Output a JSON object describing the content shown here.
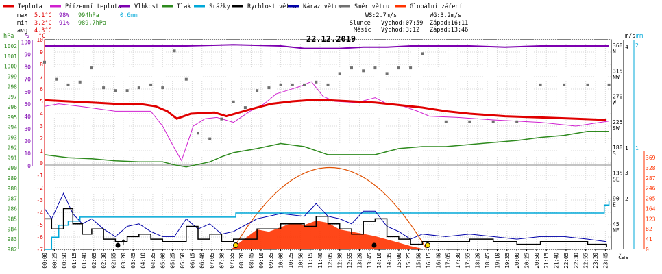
{
  "title": "22.12.2019",
  "legend": [
    {
      "label": "Teplota",
      "color": "#e00000"
    },
    {
      "label": "Přízemní teplota",
      "color": "#d020d0"
    },
    {
      "label": "Vlhkost",
      "color": "#7d00b0"
    },
    {
      "label": "Tlak",
      "color": "#2e8a1e"
    },
    {
      "label": "Srážky",
      "color": "#00a8d8"
    },
    {
      "label": "Rychlost větru",
      "color": "#000000"
    },
    {
      "label": "Náraz větru",
      "color": "#0000a8"
    },
    {
      "label": "Směr větru",
      "color": "#707070"
    },
    {
      "label": "Globální záření",
      "color": "#ff3300"
    }
  ],
  "stats": {
    "max_label": "max",
    "min_label": "min",
    "avg_label": "avg",
    "max_temp": "5.1°C",
    "max_hum": "98%",
    "max_press": "994hPa",
    "max_rain": "0.6mm",
    "min_temp": "3.2°C",
    "min_hum": "91%",
    "min_press": "989.7hPa",
    "avg_temp": "4.3°C"
  },
  "wind_info": {
    "ws": "WS:2.7m/s",
    "wg": "WG:3.2m/s"
  },
  "sun_info": {
    "label": "Slunce",
    "rise": "Východ:07:59",
    "set": "Západ:16:11"
  },
  "moon_info": {
    "label": "Měsíc",
    "rise": "Východ:3:12",
    "set": "Západ:13:46"
  },
  "axes": {
    "hpa_label": "hPa",
    "pct_label": "%",
    "c_label": "°C",
    "ms_label": "m/s",
    "mm_label": "mm",
    "wm2_label": "W/m²",
    "time_label": "čas",
    "hpa_ticks": [
      "1002",
      "1001",
      "1000",
      "999",
      "998",
      "997",
      "996",
      "995",
      "994",
      "993",
      "992",
      "991",
      "990",
      "989",
      "988",
      "987",
      "986",
      "985",
      "984",
      "983",
      "982"
    ],
    "pct_ticks": [
      "100",
      "90",
      "80",
      "70",
      "60",
      "50",
      "40",
      "30",
      "20",
      "10",
      "0"
    ],
    "c_ticks": [
      "10",
      "9",
      "8",
      "7",
      "6",
      "5",
      "4",
      "3",
      "2",
      "1",
      "0",
      "-1",
      "-2",
      "-3",
      "-4",
      "-5",
      "-6",
      "-7"
    ],
    "dir_ticks": [
      "360",
      "N",
      "315",
      "NW",
      "270",
      "W",
      "225",
      "SW",
      "180",
      "S",
      "135",
      "SE",
      "90",
      "E",
      "45",
      "NE"
    ],
    "ms_ticks": [
      "4",
      "3",
      "2",
      "1"
    ],
    "mm_ticks": [
      "2",
      "1"
    ],
    "wm2_ticks": [
      "369",
      "328",
      "287",
      "246",
      "205",
      "164",
      "123",
      "82",
      "41",
      "0"
    ],
    "time_ticks": [
      "00:00",
      "00:25",
      "00:50",
      "01:15",
      "01:40",
      "02:05",
      "02:30",
      "02:55",
      "03:20",
      "03:45",
      "04:10",
      "04:35",
      "05:00",
      "05:25",
      "05:50",
      "06:15",
      "06:40",
      "07:05",
      "07:30",
      "07:55",
      "08:20",
      "08:45",
      "09:10",
      "09:35",
      "10:00",
      "10:25",
      "10:50",
      "11:15",
      "11:40",
      "12:05",
      "12:30",
      "12:55",
      "13:20",
      "13:45",
      "14:10",
      "14:35",
      "15:00",
      "15:25",
      "15:50",
      "16:15",
      "16:40",
      "17:05",
      "17:30",
      "17:55",
      "18:20",
      "18:45",
      "19:10",
      "19:35",
      "20:00",
      "20:25",
      "20:50",
      "21:15",
      "21:40",
      "22:05",
      "22:30",
      "22:55",
      "23:20",
      "23:45"
    ]
  },
  "chart_data": {
    "type": "line",
    "title": "22.12.2019",
    "xlabel": "čas",
    "x_range": [
      "00:00",
      "24:00"
    ],
    "series": [
      {
        "name": "Teplota",
        "unit": "°C",
        "color": "#e00000",
        "x_h": [
          0,
          1,
          2,
          3,
          4,
          4.7,
          5.2,
          5.6,
          6.2,
          7.2,
          7.7,
          8.8,
          9.6,
          10.5,
          11.2,
          12,
          13,
          14,
          15,
          16,
          17,
          18,
          19.5,
          21,
          22.5,
          23.8
        ],
        "values": [
          5.1,
          5.0,
          4.9,
          4.8,
          4.8,
          4.6,
          4.2,
          3.6,
          4.0,
          4.1,
          3.8,
          4.4,
          4.8,
          5.0,
          5.1,
          5.1,
          5.0,
          4.9,
          4.7,
          4.5,
          4.2,
          4.0,
          3.8,
          3.7,
          3.6,
          3.5
        ]
      },
      {
        "name": "Přízemní teplota",
        "unit": "°C",
        "color": "#d020d0",
        "x_h": [
          0,
          0.6,
          1.5,
          3,
          4.5,
          5,
          5.5,
          5.8,
          6.3,
          6.8,
          7.3,
          8,
          8.7,
          9.3,
          9.8,
          10.8,
          11.3,
          11.8,
          12.3,
          13.2,
          14,
          14.5,
          15.2,
          15.8,
          16.3,
          17.5,
          19,
          21,
          22.5,
          23.9
        ],
        "values": [
          4.6,
          4.8,
          4.6,
          4.2,
          4.2,
          3.0,
          1.2,
          0.2,
          3.0,
          3.6,
          3.7,
          3.3,
          4.2,
          4.8,
          5.6,
          6.2,
          6.6,
          5.4,
          5.0,
          4.9,
          5.3,
          4.8,
          4.6,
          4.2,
          3.8,
          3.7,
          3.5,
          3.3,
          3.0,
          3.4
        ]
      },
      {
        "name": "Vlhkost",
        "unit": "%",
        "color": "#7d00b0",
        "x_h": [
          0,
          2,
          4,
          6,
          8,
          10,
          11,
          12,
          12.5,
          13.5,
          14.5,
          15.5,
          16.5,
          18,
          19.5,
          21,
          22.5,
          23.9
        ],
        "values": [
          97,
          97,
          97,
          97,
          98,
          97,
          95,
          95,
          95,
          96,
          96,
          97,
          97,
          97,
          96,
          97,
          97,
          97
        ]
      },
      {
        "name": "Tlak",
        "unit": "hPa",
        "color": "#2e8a1e",
        "x_h": [
          0,
          1,
          2,
          3,
          4,
          5,
          5.5,
          6,
          7,
          7.5,
          8,
          9,
          10,
          11,
          12,
          13,
          14,
          15,
          16,
          17,
          18,
          19,
          20,
          21,
          22,
          23,
          23.9
        ],
        "values": [
          991.3,
          991.0,
          990.9,
          990.7,
          990.6,
          990.6,
          990.3,
          990.1,
          990.6,
          991.1,
          991.5,
          991.9,
          992.4,
          992.1,
          991.3,
          991.3,
          991.3,
          991.9,
          992.1,
          992.1,
          992.3,
          992.5,
          992.7,
          993.0,
          993.2,
          993.6,
          993.6
        ]
      },
      {
        "name": "Srážky",
        "unit": "mm",
        "color": "#00a8d8",
        "x_h": [
          0,
          0.3,
          0.6,
          1,
          1.5,
          2,
          7.8,
          8.1,
          16,
          23.7,
          23.9
        ],
        "values": [
          0,
          0.15,
          0.3,
          0.35,
          0.4,
          0.4,
          0.4,
          0.45,
          0.45,
          0.55,
          0.6
        ]
      },
      {
        "name": "Rychlost větru",
        "unit": "m/s",
        "color": "#000000",
        "x_h": [
          0,
          0.3,
          0.8,
          1.2,
          1.6,
          2,
          2.5,
          3,
          3.5,
          4,
          4.5,
          5,
          5.5,
          6,
          6.5,
          7,
          7.5,
          8,
          9,
          10,
          11,
          11.5,
          12,
          12.5,
          13,
          13.5,
          14,
          14.5,
          15,
          15.5,
          16,
          17,
          18,
          19,
          20,
          21,
          22,
          23,
          23.8
        ],
        "values": [
          1.2,
          0.8,
          1.6,
          1.0,
          0.6,
          0.8,
          0.4,
          0.3,
          0.5,
          0.6,
          0.4,
          0.3,
          0.3,
          0.9,
          0.4,
          0.6,
          0.3,
          0.4,
          0.8,
          1.0,
          0.9,
          1.3,
          1.0,
          0.8,
          0.6,
          1.1,
          1.2,
          0.5,
          0.4,
          0.2,
          0.3,
          0.3,
          0.4,
          0.3,
          0.2,
          0.3,
          0.3,
          0.2,
          0.1
        ]
      },
      {
        "name": "Náraz větru",
        "unit": "m/s",
        "color": "#0000a8",
        "x_h": [
          0,
          0.3,
          0.8,
          1.2,
          1.6,
          2,
          2.5,
          3,
          3.5,
          4,
          4.5,
          5,
          5.5,
          6,
          6.5,
          7,
          7.5,
          8,
          9,
          10,
          11,
          11.5,
          12,
          12.5,
          13,
          13.5,
          14,
          14.5,
          15,
          15.5,
          16,
          17,
          18,
          19,
          20,
          21,
          22,
          23,
          23.8
        ],
        "values": [
          1.6,
          1.2,
          2.2,
          1.4,
          1.0,
          1.2,
          0.8,
          0.5,
          0.9,
          1.0,
          0.7,
          0.5,
          0.5,
          1.2,
          0.8,
          1.0,
          0.6,
          0.7,
          1.2,
          1.4,
          1.3,
          1.8,
          1.3,
          1.2,
          1.0,
          1.5,
          1.5,
          0.9,
          0.7,
          0.4,
          0.6,
          0.5,
          0.6,
          0.5,
          0.4,
          0.5,
          0.5,
          0.4,
          0.3
        ]
      },
      {
        "name": "Směr větru",
        "unit": "°",
        "color": "#707070",
        "x_h": [
          0,
          0.5,
          1,
          1.5,
          2,
          2.5,
          3,
          3.5,
          4,
          4.5,
          5,
          5.5,
          6,
          6.5,
          7,
          7.5,
          8,
          8.5,
          9,
          9.5,
          10,
          10.5,
          11,
          11.5,
          12,
          12.5,
          13,
          13.5,
          14,
          14.5,
          15,
          15.5,
          16,
          17,
          18,
          19,
          20,
          21,
          22,
          23,
          23.9
        ],
        "values": [
          330,
          300,
          290,
          295,
          320,
          285,
          280,
          280,
          285,
          290,
          285,
          350,
          300,
          205,
          195,
          230,
          260,
          250,
          280,
          285,
          290,
          290,
          290,
          295,
          290,
          310,
          320,
          315,
          320,
          310,
          320,
          320,
          345,
          225,
          225,
          225,
          225,
          290,
          290,
          290,
          290
        ]
      },
      {
        "name": "Globální záření",
        "unit": "W/m²",
        "color": "#ff3300",
        "x_h": [
          7.9,
          8.5,
          9,
          9.5,
          10,
          10.5,
          11,
          11.5,
          12,
          12.5,
          13,
          13.5,
          14,
          14.5,
          15,
          15.5,
          16.1
        ],
        "values": [
          0,
          50,
          90,
          80,
          100,
          120,
          110,
          130,
          120,
          90,
          80,
          70,
          60,
          45,
          30,
          15,
          0
        ]
      }
    ]
  }
}
